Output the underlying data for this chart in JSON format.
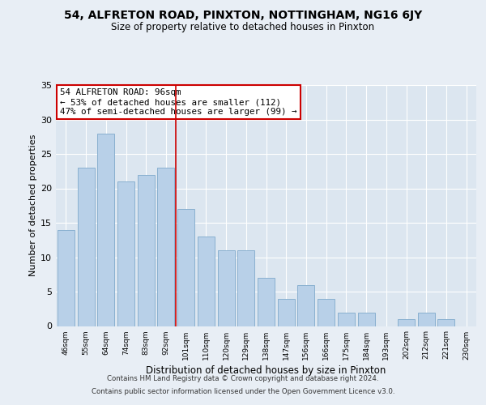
{
  "title1": "54, ALFRETON ROAD, PINXTON, NOTTINGHAM, NG16 6JY",
  "title2": "Size of property relative to detached houses in Pinxton",
  "xlabel": "Distribution of detached houses by size in Pinxton",
  "ylabel": "Number of detached properties",
  "bar_labels": [
    "46sqm",
    "55sqm",
    "64sqm",
    "74sqm",
    "83sqm",
    "92sqm",
    "101sqm",
    "110sqm",
    "120sqm",
    "129sqm",
    "138sqm",
    "147sqm",
    "156sqm",
    "166sqm",
    "175sqm",
    "184sqm",
    "193sqm",
    "202sqm",
    "212sqm",
    "221sqm",
    "230sqm"
  ],
  "bar_values": [
    14,
    23,
    28,
    21,
    22,
    23,
    17,
    13,
    11,
    11,
    7,
    4,
    6,
    4,
    2,
    2,
    0,
    1,
    2,
    1,
    0
  ],
  "bar_color": "#b8d0e8",
  "bar_edge_color": "#8ab0d0",
  "annotation_text_line1": "54 ALFRETON ROAD: 96sqm",
  "annotation_text_line2": "← 53% of detached houses are smaller (112)",
  "annotation_text_line3": "47% of semi-detached houses are larger (99) →",
  "annotation_box_color": "#ffffff",
  "annotation_box_edge": "#cc0000",
  "vline_color": "#cc0000",
  "vline_x_index": 6,
  "ylim": [
    0,
    35
  ],
  "yticks": [
    0,
    5,
    10,
    15,
    20,
    25,
    30,
    35
  ],
  "footer1": "Contains HM Land Registry data © Crown copyright and database right 2024.",
  "footer2": "Contains public sector information licensed under the Open Government Licence v3.0.",
  "bg_color": "#e8eef5",
  "plot_bg_color": "#dce6f0"
}
